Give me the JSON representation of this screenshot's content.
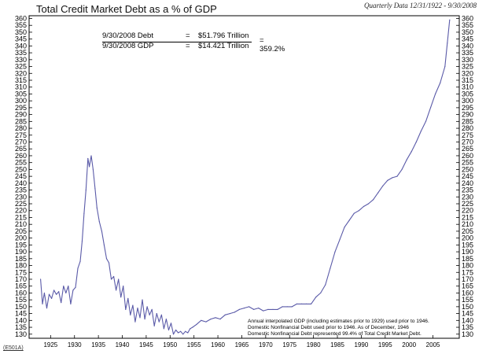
{
  "header": {
    "title": "Total Credit Market Debt as a % of GDP",
    "subtitle": "Quarterly Data 12/31/1922 - 9/30/2008"
  },
  "calculation": {
    "debt_label": "9/30/2008  Debt",
    "debt_eq": "=",
    "debt_value": "$51.796 Trillion",
    "gdp_label": "9/30/2008  GDP",
    "gdp_eq": "=",
    "gdp_value": "$14.421 Trillion",
    "result": "=  359.2%"
  },
  "notes": [
    "Annual interpolated GDP (including estimates prior to 1929) used prior to 1946.",
    "Domestic Nonfinancial Debt used prior to 1946. As of December, 1946",
    "Domestic Nonfinancial Debt represented 99.4% of Total Credit Market Debt."
  ],
  "source_code": "(E501A)",
  "colors": {
    "line": "#5a5aa8",
    "grid": "#c8c8c8",
    "axis": "#000000"
  },
  "chart_data": {
    "type": "line",
    "title": "Total Credit Market Debt as a % of GDP",
    "xlabel": "",
    "ylabel": "",
    "xlim": [
      1920.5,
      2010.5
    ],
    "ylim": [
      127,
      362
    ],
    "grid": false,
    "x_ticks": [
      1925,
      1930,
      1935,
      1940,
      1945,
      1950,
      1955,
      1960,
      1965,
      1970,
      1975,
      1980,
      1985,
      1990,
      1995,
      2000,
      2005
    ],
    "y_ticks": [
      130,
      135,
      140,
      145,
      150,
      155,
      160,
      165,
      170,
      175,
      180,
      185,
      190,
      195,
      200,
      205,
      210,
      215,
      220,
      225,
      230,
      235,
      240,
      245,
      250,
      255,
      260,
      265,
      270,
      275,
      280,
      285,
      290,
      295,
      300,
      305,
      310,
      315,
      320,
      325,
      330,
      335,
      340,
      345,
      350,
      355,
      360
    ],
    "y_tick_sides": [
      "left",
      "right"
    ],
    "series": [
      {
        "x": [
          1922.9,
          1923.3,
          1923.7,
          1924.2,
          1924.7,
          1925.2,
          1925.7,
          1926.2,
          1926.7,
          1927.2,
          1927.7,
          1928.2,
          1928.7,
          1929.2,
          1929.7,
          1930.2,
          1930.7,
          1931.2,
          1931.6,
          1932.0,
          1932.4,
          1932.8,
          1933.1,
          1933.5,
          1933.9,
          1934.3,
          1934.7,
          1935.2,
          1935.7,
          1936.2,
          1936.7,
          1937.2,
          1937.7,
          1938.2,
          1938.7,
          1939.2,
          1939.7,
          1940.2,
          1940.7,
          1941.2,
          1941.7,
          1942.2,
          1942.7,
          1943.2,
          1943.7,
          1944.2,
          1944.7,
          1945.2,
          1945.7,
          1946.2,
          1946.7,
          1947.2,
          1947.7,
          1948.2,
          1948.7,
          1949.2,
          1949.7,
          1950.2,
          1950.7,
          1951.2,
          1951.7,
          1952.2,
          1952.7,
          1953.2,
          1953.7,
          1954.2,
          1954.7,
          1955.5,
          1956.5,
          1957.5,
          1958.5,
          1959.5,
          1960.5,
          1961.5,
          1962.5,
          1963.5,
          1964.5,
          1965.5,
          1966.5,
          1967.5,
          1968.5,
          1969.5,
          1970.5,
          1971.5,
          1972.5,
          1973.5,
          1974.5,
          1975.5,
          1976.5,
          1977.5,
          1978.5,
          1979.5,
          1980.5,
          1981.5,
          1982.5,
          1983.5,
          1984.5,
          1985.5,
          1986.5,
          1987.5,
          1988.5,
          1989.5,
          1990.5,
          1991.5,
          1992.5,
          1993.5,
          1994.5,
          1995.5,
          1996.5,
          1997.5,
          1998.5,
          1999.5,
          2000.5,
          2001.5,
          2002.5,
          2003.5,
          2004.5,
          2005.5,
          2006.5,
          2007.5,
          2008.0,
          2008.5
        ],
        "y": [
          170,
          152,
          160,
          149,
          159,
          156,
          162,
          159,
          161,
          153,
          165,
          160,
          165,
          152,
          162,
          164,
          178,
          183,
          198,
          218,
          235,
          258,
          252,
          260,
          250,
          236,
          222,
          212,
          205,
          195,
          185,
          182,
          170,
          172,
          162,
          170,
          157,
          165,
          148,
          156,
          144,
          151,
          139,
          149,
          142,
          155,
          141,
          150,
          144,
          148,
          136,
          145,
          139,
          144,
          134,
          141,
          133,
          138,
          130,
          133,
          131,
          132,
          130,
          132,
          131,
          134,
          135,
          137,
          140,
          139,
          141,
          142,
          141,
          144,
          145,
          146,
          148,
          149,
          150,
          148,
          149,
          147,
          148,
          148,
          148,
          150,
          150,
          150,
          152,
          152,
          152,
          152,
          157,
          160,
          166,
          178,
          190,
          199,
          208,
          213,
          218,
          220,
          223,
          225,
          228,
          233,
          238,
          242,
          244,
          245,
          250,
          257,
          263,
          270,
          278,
          285,
          295,
          305,
          313,
          325,
          342,
          359
        ]
      }
    ]
  }
}
